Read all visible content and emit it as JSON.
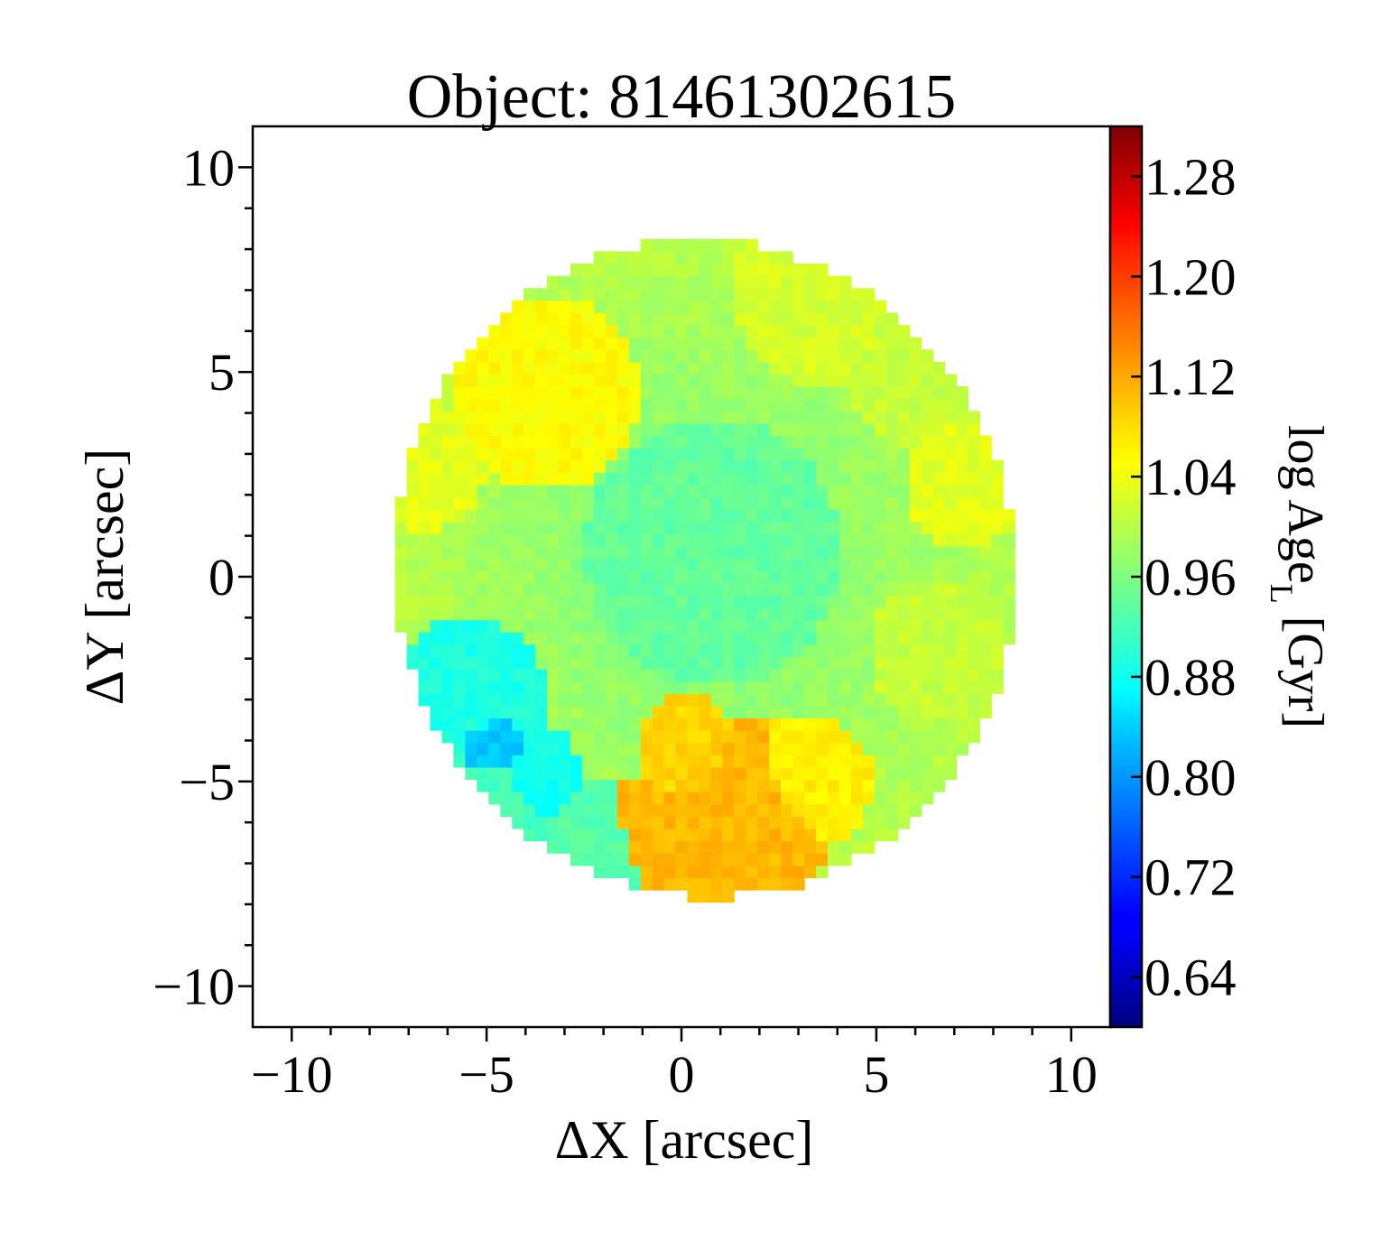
{
  "chart_data": {
    "type": "heatmap",
    "title": "Object: 81461302615",
    "xlabel": "ΔX [arcsec]",
    "ylabel": "ΔY [arcsec]",
    "xlim": [
      -11,
      11
    ],
    "ylim": [
      -11,
      11
    ],
    "x_ticks": [
      "−10",
      "−5",
      "0",
      "5",
      "10"
    ],
    "y_ticks": [
      "10",
      "5",
      "0",
      "−5",
      "−10"
    ],
    "x_tick_values": [
      -10,
      -5,
      0,
      5,
      10
    ],
    "y_tick_values": [
      10,
      5,
      0,
      -5,
      -10
    ],
    "colormap": "jet",
    "colorbar": {
      "label": "log Age",
      "label_sub": "L",
      "label_unit": " [Gyr]",
      "range": [
        0.6,
        1.32
      ],
      "tick_values": [
        0.64,
        0.72,
        0.8,
        0.88,
        0.96,
        1.04,
        1.12,
        1.2,
        1.28
      ],
      "ticks": [
        "0.64",
        "0.72",
        "0.80",
        "0.88",
        "0.96",
        "1.04",
        "1.12",
        "1.20",
        "1.28"
      ]
    },
    "map": {
      "center": [
        0.6,
        0.2
      ],
      "semi_axes": [
        7.9,
        8.1
      ],
      "rotation_deg": 38,
      "center_value": 0.95,
      "edge_value": 1.0,
      "regions": [
        {
          "x": -4.9,
          "y": -4.1,
          "r": 1.2,
          "value": 0.83
        },
        {
          "x": -5.5,
          "y": -3.0,
          "r": 2.0,
          "value": 0.89
        },
        {
          "x": -3.8,
          "y": -4.9,
          "r": 1.3,
          "value": 0.88
        },
        {
          "x": -5.0,
          "y": -5.8,
          "r": 2.2,
          "value": 0.92
        },
        {
          "x": -1.9,
          "y": -7.0,
          "r": 2.1,
          "value": 0.93
        },
        {
          "x": 1.6,
          "y": -5.8,
          "r": 2.4,
          "value": 1.1
        },
        {
          "x": -0.8,
          "y": -6.6,
          "r": 1.8,
          "value": 1.1
        },
        {
          "x": 0.2,
          "y": -4.3,
          "r": 1.4,
          "value": 1.08
        },
        {
          "x": 3.2,
          "y": -5.0,
          "r": 1.7,
          "value": 1.06
        },
        {
          "x": -3.5,
          "y": 4.5,
          "r": 2.4,
          "value": 1.05
        },
        {
          "x": 3.6,
          "y": 7.0,
          "r": 2.3,
          "value": 1.02
        },
        {
          "x": 7.3,
          "y": 2.3,
          "r": 1.6,
          "value": 1.03
        },
        {
          "x": 6.0,
          "y": 5.0,
          "r": 1.8,
          "value": 1.01
        },
        {
          "x": 6.6,
          "y": -1.8,
          "r": 1.8,
          "value": 1.01
        },
        {
          "x": -6.6,
          "y": 2.7,
          "r": 1.6,
          "value": 1.03
        },
        {
          "x": 0.8,
          "y": 0.6,
          "r": 3.3,
          "value": 0.94
        }
      ]
    }
  }
}
